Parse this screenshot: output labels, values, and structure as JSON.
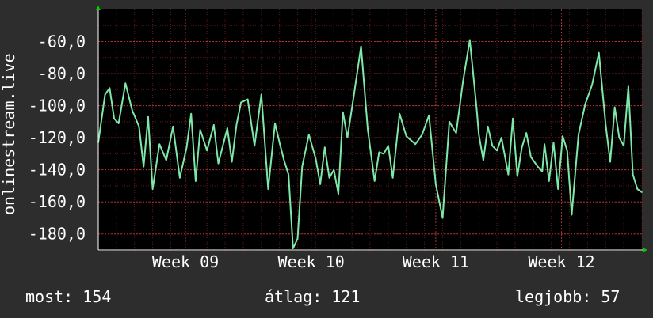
{
  "chart_data": {
    "type": "line",
    "ylabel": "onlinestream.live",
    "ylim": [
      -190,
      -40
    ],
    "yticks": [
      -60,
      -80,
      -100,
      -120,
      -140,
      -160,
      -180
    ],
    "ytick_labels": [
      "-60,0",
      "-80,0",
      "-100,0",
      "-120,0",
      "-140,0",
      "-160,0",
      "-180,0"
    ],
    "xlim": [
      0,
      480
    ],
    "xticks": [
      77,
      188,
      298,
      409
    ],
    "xtick_labels": [
      "Week 09",
      "Week 10",
      "Week 11",
      "Week 12"
    ],
    "grid": true,
    "x": [
      0,
      6,
      10,
      14,
      18,
      24,
      30,
      36,
      40,
      44,
      48,
      54,
      60,
      66,
      72,
      78,
      82,
      86,
      90,
      96,
      102,
      106,
      110,
      114,
      118,
      122,
      126,
      132,
      138,
      144,
      150,
      156,
      160,
      164,
      168,
      172,
      176,
      180,
      186,
      192,
      196,
      200,
      204,
      208,
      212,
      216,
      220,
      226,
      232,
      238,
      244,
      248,
      252,
      256,
      260,
      266,
      272,
      280,
      286,
      292,
      298,
      304,
      310,
      316,
      322,
      328,
      334,
      336,
      340,
      344,
      348,
      352,
      356,
      362,
      366,
      370,
      374,
      378,
      382,
      388,
      392,
      394,
      398,
      402,
      406,
      410,
      414,
      418,
      424,
      430,
      436,
      442,
      448,
      452,
      456,
      460,
      464,
      468,
      472,
      476,
      480
    ],
    "series": [
      {
        "color": "#7ee8a8",
        "values": [
          -123,
          -93,
          -89,
          -108,
          -111,
          -86,
          -103,
          -113,
          -138,
          -107,
          -152,
          -124,
          -134,
          -113,
          -145,
          -126,
          -105,
          -147,
          -115,
          -128,
          -112,
          -136,
          -125,
          -114,
          -135,
          -112,
          -98,
          -96,
          -125,
          -93,
          -152,
          -111,
          -123,
          -134,
          -143,
          -189,
          -183,
          -138,
          -118,
          -133,
          -149,
          -126,
          -145,
          -140,
          -155,
          -104,
          -120,
          -92,
          -63,
          -115,
          -147,
          -129,
          -130,
          -125,
          -145,
          -105,
          -119,
          -124,
          -118,
          -106,
          -149,
          -170,
          -110,
          -117,
          -85,
          -59,
          -101,
          -118,
          -134,
          -113,
          -125,
          -128,
          -120,
          -143,
          -108,
          -144,
          -126,
          -117,
          -132,
          -138,
          -141,
          -124,
          -147,
          -123,
          -152,
          -119,
          -128,
          -168,
          -118,
          -99,
          -87,
          -67,
          -112,
          -135,
          -101,
          -120,
          -125,
          -88,
          -143,
          -152,
          -154
        ]
      }
    ]
  },
  "stats": {
    "now": "most: 154",
    "avg": "átlag: 121",
    "best": "legjobb: 57"
  },
  "colors": {
    "background": "#2d2d2d",
    "plot_background": "#000000",
    "line": "#7ee8a8",
    "grid": "#7a2020",
    "axis_arrow": "#00cc00"
  }
}
